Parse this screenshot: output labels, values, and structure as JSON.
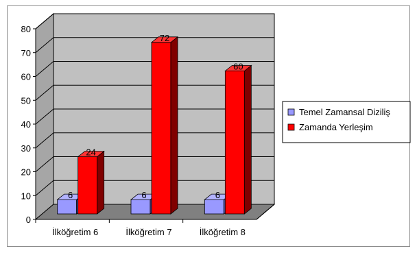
{
  "chart_data": {
    "type": "bar",
    "title": "",
    "xlabel": "",
    "ylabel": "",
    "categories": [
      "İlköğretim 6",
      "İlköğretim 7",
      "İlköğretim 8"
    ],
    "ylim": [
      0,
      80
    ],
    "yticks": [
      "0",
      "10",
      "20",
      "30",
      "40",
      "50",
      "60",
      "70",
      "80"
    ],
    "grid": true,
    "legend_position": "right",
    "series": [
      {
        "name": "Temel Zamansal Diziliş",
        "values": [
          6,
          6,
          6
        ],
        "labels": [
          "6",
          "6",
          "6"
        ]
      },
      {
        "name": "Zamanda Yerleşim",
        "values": [
          24,
          72,
          60
        ],
        "labels": [
          "24",
          "72",
          "60"
        ]
      }
    ]
  },
  "colors": {
    "series_front": [
      "#9999ff",
      "#ff0000"
    ],
    "series_side": [
      "#4d4d99",
      "#800000"
    ],
    "series_top": [
      "#b3b3ff",
      "#ff3333"
    ],
    "back_wall": "#c0c0c0",
    "side_wall": "#a6a6a6",
    "floor": "#808080",
    "gridline": "#000000",
    "axis": "#000000"
  }
}
